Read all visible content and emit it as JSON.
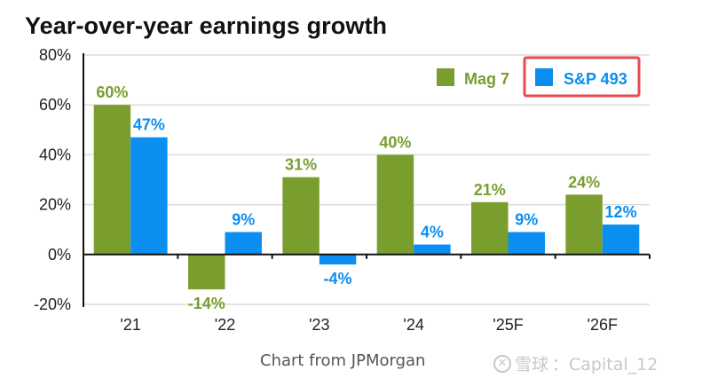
{
  "chart_data": {
    "type": "bar",
    "title": "Year-over-year earnings growth",
    "xlabel": "",
    "ylabel": "",
    "categories": [
      "'21",
      "'22",
      "'23",
      "'24",
      "'25F",
      "'26F"
    ],
    "series": [
      {
        "name": "Mag 7",
        "color": "#7a9e2e",
        "values": [
          60,
          -14,
          31,
          40,
          21,
          24
        ],
        "labels": [
          "60%",
          "-14%",
          "31%",
          "40%",
          "21%",
          "24%"
        ]
      },
      {
        "name": "S&P 493",
        "color": "#0a8ff0",
        "values": [
          47,
          9,
          -4,
          4,
          9,
          12
        ],
        "labels": [
          "47%",
          "9%",
          "-4%",
          "4%",
          "9%",
          "12%"
        ]
      }
    ],
    "ylim": [
      -20,
      80
    ],
    "yticks": [
      80,
      60,
      40,
      20,
      0,
      -20
    ],
    "ytick_labels": [
      "80%",
      "60%",
      "40%",
      "20%",
      "0%",
      "-20%"
    ],
    "grid": true,
    "legend_position": "top-right",
    "legend_highlight": {
      "series": "S&P 493",
      "color": "#e84a4f"
    }
  },
  "legend": {
    "mag7_label": "Mag 7",
    "sp493_label": "S&P 493"
  },
  "footer": {
    "source": "Chart from JPMorgan",
    "watermark_brand": "雪球",
    "watermark_user": "：Capital_12"
  }
}
